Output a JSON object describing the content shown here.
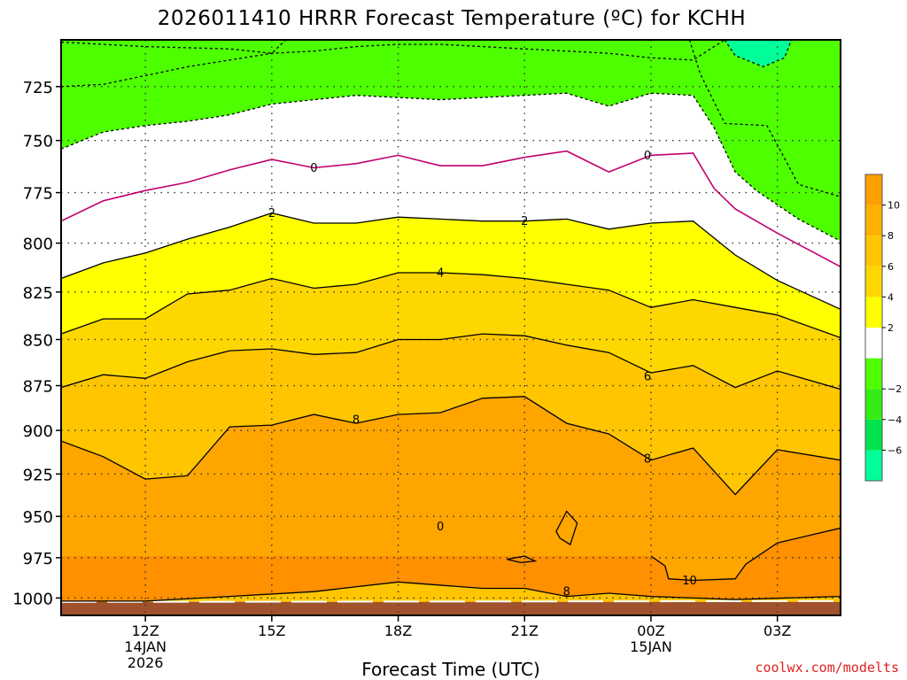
{
  "chart_data": {
    "type": "heatmap",
    "title": "2026011410 HRRR Forecast Temperature (ºC) for KCHH",
    "xlabel": "Forecast Time (UTC)",
    "ylabel": "",
    "y_scale": "log",
    "ylim": [
      1011,
      704
    ],
    "y_ticks": [
      725,
      750,
      775,
      800,
      825,
      850,
      875,
      900,
      925,
      950,
      975,
      1000
    ],
    "xlim": [
      "2026-01-14T10:00Z",
      "2026-01-15T04:30Z"
    ],
    "x_ticks": [
      {
        "time": "2026-01-14T12:00Z",
        "label": "12Z",
        "sub": [
          "14JAN",
          "2026"
        ]
      },
      {
        "time": "2026-01-14T15:00Z",
        "label": "15Z",
        "sub": []
      },
      {
        "time": "2026-01-14T18:00Z",
        "label": "18Z",
        "sub": []
      },
      {
        "time": "2026-01-14T21:00Z",
        "label": "21Z",
        "sub": []
      },
      {
        "time": "2026-01-15T00:00Z",
        "label": "00Z",
        "sub": [
          "15JAN"
        ]
      },
      {
        "time": "2026-01-15T03:00Z",
        "label": "03Z",
        "sub": []
      }
    ],
    "grid": true,
    "colorbar": {
      "levels": [
        -8,
        -6,
        -4,
        -2,
        0,
        2,
        4,
        6,
        8,
        10,
        12
      ],
      "colors": [
        "#00ff99",
        "#00e34c",
        "#33ec15",
        "#4dff00",
        "#ffffff",
        "#ffff00",
        "#ffd700",
        "#ffc500",
        "#ffb000",
        "#ff9f00"
      ],
      "tick_labels": [
        {
          "value": 10,
          "text": "10"
        },
        {
          "value": 8,
          "text": "8"
        },
        {
          "value": 6,
          "text": "6"
        },
        {
          "value": 4,
          "text": "4"
        },
        {
          "value": 2,
          "text": "2"
        },
        {
          "value": -2,
          "text": "−2"
        },
        {
          "value": -4,
          "text": "−4"
        },
        {
          "value": -6,
          "text": "−6"
        }
      ]
    },
    "ground_color": "#a0522d",
    "band_colors": {
      "above_-6": "#00ff99",
      "-6_to_-4": "#00e34c",
      "-4_to_-2": "#4dff00",
      "-2_to_0": "#ffffff",
      "0_to_2": "#ffffff",
      "2_to_4": "#ffff00",
      "4_to_6": "#ffd700",
      "6_to_8": "#ffc500",
      "8_to_10": "#ffa500",
      "above_10": "#ff9000"
    },
    "isotherms": [
      {
        "value": -6,
        "style": "dashed",
        "color": "#000000",
        "points": [
          [
            "2026-01-14T10:00Z",
            705
          ],
          [
            "2026-01-14T11:00Z",
            706
          ],
          [
            "2026-01-14T12:00Z",
            707
          ],
          [
            "2026-01-14T14:00Z",
            708
          ],
          [
            "2026-01-14T15:00Z",
            710
          ],
          [
            "2026-01-14T15:20Z",
            704
          ]
        ]
      },
      {
        "value": -6,
        "style": "dashed",
        "color": "#000000",
        "points": [
          [
            "2026-01-15T01:45Z",
            704
          ],
          [
            "2026-01-15T02:00Z",
            711
          ],
          [
            "2026-01-15T02:40Z",
            716
          ],
          [
            "2026-01-15T03:10Z",
            712
          ],
          [
            "2026-01-15T03:20Z",
            704
          ]
        ]
      },
      {
        "value": -4,
        "style": "dashed",
        "color": "#000000",
        "points": [
          [
            "2026-01-14T10:00Z",
            725
          ],
          [
            "2026-01-14T11:00Z",
            724
          ],
          [
            "2026-01-14T12:00Z",
            720
          ],
          [
            "2026-01-14T13:00Z",
            716
          ],
          [
            "2026-01-14T14:00Z",
            713
          ],
          [
            "2026-01-14T15:00Z",
            710
          ],
          [
            "2026-01-14T16:00Z",
            709
          ],
          [
            "2026-01-14T17:00Z",
            707
          ],
          [
            "2026-01-14T18:00Z",
            706
          ],
          [
            "2026-01-14T19:00Z",
            706
          ],
          [
            "2026-01-14T20:00Z",
            707
          ],
          [
            "2026-01-14T21:00Z",
            708
          ],
          [
            "2026-01-14T22:00Z",
            709
          ],
          [
            "2026-01-14T23:00Z",
            710
          ],
          [
            "2026-01-15T00:00Z",
            712
          ],
          [
            "2026-01-15T01:00Z",
            713
          ],
          [
            "2026-01-15T01:45Z",
            704
          ]
        ]
      },
      {
        "value": -4,
        "style": "dashed",
        "color": "#000000",
        "points": [
          [
            "2026-01-15T00:55Z",
            704
          ],
          [
            "2026-01-15T01:10Z",
            719
          ],
          [
            "2026-01-15T01:45Z",
            742
          ],
          [
            "2026-01-15T02:45Z",
            743
          ],
          [
            "2026-01-15T03:00Z",
            752
          ],
          [
            "2026-01-15T03:30Z",
            771
          ],
          [
            "2026-01-15T04:30Z",
            777
          ]
        ]
      },
      {
        "value": -2,
        "style": "dashed",
        "color": "#000000",
        "points": [
          [
            "2026-01-14T10:00Z",
            754
          ],
          [
            "2026-01-14T11:00Z",
            746
          ],
          [
            "2026-01-14T12:00Z",
            743
          ],
          [
            "2026-01-14T13:00Z",
            741
          ],
          [
            "2026-01-14T14:00Z",
            738
          ],
          [
            "2026-01-14T15:00Z",
            733
          ],
          [
            "2026-01-14T16:00Z",
            731
          ],
          [
            "2026-01-14T17:00Z",
            729
          ],
          [
            "2026-01-14T18:00Z",
            730
          ],
          [
            "2026-01-14T19:00Z",
            731
          ],
          [
            "2026-01-14T20:00Z",
            730
          ],
          [
            "2026-01-14T21:00Z",
            729
          ],
          [
            "2026-01-14T22:00Z",
            728
          ],
          [
            "2026-01-14T23:00Z",
            734
          ],
          [
            "2026-01-15T00:00Z",
            728
          ],
          [
            "2026-01-15T01:00Z",
            729
          ],
          [
            "2026-01-15T01:30Z",
            744
          ],
          [
            "2026-01-15T02:00Z",
            765
          ],
          [
            "2026-01-15T02:30Z",
            774
          ],
          [
            "2026-01-15T03:30Z",
            788
          ],
          [
            "2026-01-15T04:30Z",
            799
          ]
        ]
      },
      {
        "value": 0,
        "style": "solid",
        "color": "#c0006e",
        "points": [
          [
            "2026-01-14T10:00Z",
            789
          ],
          [
            "2026-01-14T11:00Z",
            779
          ],
          [
            "2026-01-14T12:00Z",
            774
          ],
          [
            "2026-01-14T13:00Z",
            770
          ],
          [
            "2026-01-14T14:00Z",
            764
          ],
          [
            "2026-01-14T15:00Z",
            759
          ],
          [
            "2026-01-14T16:00Z",
            763
          ],
          [
            "2026-01-14T17:00Z",
            761
          ],
          [
            "2026-01-14T18:00Z",
            757
          ],
          [
            "2026-01-14T19:00Z",
            762
          ],
          [
            "2026-01-14T20:00Z",
            762
          ],
          [
            "2026-01-14T21:00Z",
            758
          ],
          [
            "2026-01-14T22:00Z",
            755
          ],
          [
            "2026-01-14T23:00Z",
            765
          ],
          [
            "2026-01-15T00:00Z",
            757
          ],
          [
            "2026-01-15T01:00Z",
            756
          ],
          [
            "2026-01-15T01:30Z",
            773
          ],
          [
            "2026-01-15T02:00Z",
            783
          ],
          [
            "2026-01-15T03:00Z",
            795
          ],
          [
            "2026-01-15T04:30Z",
            812
          ]
        ]
      },
      {
        "value": 2,
        "style": "solid",
        "color": "#000000",
        "points": [
          [
            "2026-01-14T10:00Z",
            818
          ],
          [
            "2026-01-14T11:00Z",
            810
          ],
          [
            "2026-01-14T12:00Z",
            805
          ],
          [
            "2026-01-14T13:00Z",
            798
          ],
          [
            "2026-01-14T14:00Z",
            792
          ],
          [
            "2026-01-14T15:00Z",
            785
          ],
          [
            "2026-01-14T16:00Z",
            790
          ],
          [
            "2026-01-14T17:00Z",
            790
          ],
          [
            "2026-01-14T18:00Z",
            787
          ],
          [
            "2026-01-14T19:00Z",
            788
          ],
          [
            "2026-01-14T20:00Z",
            789
          ],
          [
            "2026-01-14T21:00Z",
            789
          ],
          [
            "2026-01-14T22:00Z",
            788
          ],
          [
            "2026-01-14T23:00Z",
            793
          ],
          [
            "2026-01-15T00:00Z",
            790
          ],
          [
            "2026-01-15T01:00Z",
            789
          ],
          [
            "2026-01-15T02:00Z",
            806
          ],
          [
            "2026-01-15T03:00Z",
            819
          ],
          [
            "2026-01-15T04:30Z",
            834
          ]
        ]
      },
      {
        "value": 4,
        "style": "solid",
        "color": "#000000",
        "points": [
          [
            "2026-01-14T10:00Z",
            847
          ],
          [
            "2026-01-14T11:00Z",
            839
          ],
          [
            "2026-01-14T12:00Z",
            839
          ],
          [
            "2026-01-14T13:00Z",
            826
          ],
          [
            "2026-01-14T14:00Z",
            824
          ],
          [
            "2026-01-14T15:00Z",
            818
          ],
          [
            "2026-01-14T16:00Z",
            823
          ],
          [
            "2026-01-14T17:00Z",
            821
          ],
          [
            "2026-01-14T18:00Z",
            815
          ],
          [
            "2026-01-14T19:00Z",
            815
          ],
          [
            "2026-01-14T20:00Z",
            816
          ],
          [
            "2026-01-14T21:00Z",
            818
          ],
          [
            "2026-01-14T22:00Z",
            821
          ],
          [
            "2026-01-14T23:00Z",
            824
          ],
          [
            "2026-01-15T00:00Z",
            833
          ],
          [
            "2026-01-15T01:00Z",
            829
          ],
          [
            "2026-01-15T02:00Z",
            833
          ],
          [
            "2026-01-15T03:00Z",
            837
          ],
          [
            "2026-01-15T04:30Z",
            849
          ]
        ]
      },
      {
        "value": 6,
        "style": "solid",
        "color": "#000000",
        "points": [
          [
            "2026-01-14T10:00Z",
            876
          ],
          [
            "2026-01-14T11:00Z",
            869
          ],
          [
            "2026-01-14T12:00Z",
            871
          ],
          [
            "2026-01-14T13:00Z",
            862
          ],
          [
            "2026-01-14T14:00Z",
            856
          ],
          [
            "2026-01-14T15:00Z",
            855
          ],
          [
            "2026-01-14T16:00Z",
            858
          ],
          [
            "2026-01-14T17:00Z",
            857
          ],
          [
            "2026-01-14T18:00Z",
            850
          ],
          [
            "2026-01-14T19:00Z",
            850
          ],
          [
            "2026-01-14T20:00Z",
            847
          ],
          [
            "2026-01-14T21:00Z",
            848
          ],
          [
            "2026-01-14T22:00Z",
            853
          ],
          [
            "2026-01-14T23:00Z",
            857
          ],
          [
            "2026-01-15T00:00Z",
            868
          ],
          [
            "2026-01-15T01:00Z",
            864
          ],
          [
            "2026-01-15T02:00Z",
            876
          ],
          [
            "2026-01-15T03:00Z",
            867
          ],
          [
            "2026-01-15T04:30Z",
            877
          ]
        ]
      },
      {
        "value": 8,
        "style": "solid",
        "color": "#000000",
        "points": [
          [
            "2026-01-14T10:00Z",
            906
          ],
          [
            "2026-01-14T11:00Z",
            915
          ],
          [
            "2026-01-14T12:00Z",
            928
          ],
          [
            "2026-01-14T13:00Z",
            926
          ],
          [
            "2026-01-14T14:00Z",
            898
          ],
          [
            "2026-01-14T15:00Z",
            897
          ],
          [
            "2026-01-14T16:00Z",
            891
          ],
          [
            "2026-01-14T17:00Z",
            896
          ],
          [
            "2026-01-14T18:00Z",
            891
          ],
          [
            "2026-01-14T19:00Z",
            890
          ],
          [
            "2026-01-14T20:00Z",
            882
          ],
          [
            "2026-01-14T21:00Z",
            881
          ],
          [
            "2026-01-14T22:00Z",
            896
          ],
          [
            "2026-01-14T23:00Z",
            902
          ],
          [
            "2026-01-15T00:00Z",
            917
          ],
          [
            "2026-01-15T01:00Z",
            910
          ],
          [
            "2026-01-15T02:00Z",
            937
          ],
          [
            "2026-01-15T03:00Z",
            911
          ],
          [
            "2026-01-15T04:30Z",
            917
          ]
        ]
      },
      {
        "value": 8,
        "style": "solid",
        "color": "#000000",
        "points": [
          [
            "2026-01-14T10:00Z",
            1002
          ],
          [
            "2026-01-14T12:00Z",
            1002
          ],
          [
            "2026-01-14T14:00Z",
            999
          ],
          [
            "2026-01-14T16:00Z",
            996
          ],
          [
            "2026-01-14T18:00Z",
            990
          ],
          [
            "2026-01-14T20:00Z",
            994
          ],
          [
            "2026-01-14T21:00Z",
            994
          ],
          [
            "2026-01-14T22:00Z",
            999
          ],
          [
            "2026-01-14T23:00Z",
            997
          ],
          [
            "2026-01-15T00:00Z",
            999
          ],
          [
            "2026-01-15T02:00Z",
            1001
          ],
          [
            "2026-01-15T04:30Z",
            999
          ]
        ]
      },
      {
        "value": 8,
        "style": "solid",
        "color": "#000000",
        "closed": true,
        "points": [
          [
            "2026-01-14T22:00Z",
            947
          ],
          [
            "2026-01-14T22:15Z",
            954
          ],
          [
            "2026-01-14T22:05Z",
            967
          ],
          [
            "2026-01-14T21:50Z",
            963
          ],
          [
            "2026-01-14T21:45Z",
            959
          ]
        ]
      },
      {
        "value": 10,
        "style": "solid",
        "color": "#000000",
        "points": [
          [
            "2026-01-15T00:00Z",
            974
          ],
          [
            "2026-01-15T00:20Z",
            980
          ],
          [
            "2026-01-15T00:25Z",
            988
          ],
          [
            "2026-01-15T01:00Z",
            989
          ],
          [
            "2026-01-15T02:00Z",
            988
          ],
          [
            "2026-01-15T02:15Z",
            979
          ],
          [
            "2026-01-15T03:00Z",
            966
          ],
          [
            "2026-01-15T04:30Z",
            957
          ]
        ]
      },
      {
        "value": 10,
        "style": "solid",
        "color": "#000000",
        "closed": true,
        "points": [
          [
            "2026-01-14T20:35Z",
            976
          ],
          [
            "2026-01-14T21:00Z",
            974
          ],
          [
            "2026-01-14T21:15Z",
            977
          ],
          [
            "2026-01-14T20:55Z",
            978
          ]
        ]
      }
    ],
    "contour_labels": [
      {
        "text": "0",
        "time": "2026-01-14T16:00Z",
        "p": 763
      },
      {
        "text": "0",
        "time": "2026-01-14T23:55Z",
        "p": 757
      },
      {
        "text": "2",
        "time": "2026-01-14T15:00Z",
        "p": 785
      },
      {
        "text": "2",
        "time": "2026-01-14T21:00Z",
        "p": 789
      },
      {
        "text": "4",
        "time": "2026-01-14T19:00Z",
        "p": 815
      },
      {
        "text": "6",
        "time": "2026-01-14T23:55Z",
        "p": 870
      },
      {
        "text": "8",
        "time": "2026-01-14T17:00Z",
        "p": 894
      },
      {
        "text": "8",
        "time": "2026-01-14T23:55Z",
        "p": 916
      },
      {
        "text": "8",
        "time": "2026-01-14T22:00Z",
        "p": 996
      },
      {
        "text": "10",
        "time": "2026-01-15T00:55Z",
        "p": 989
      },
      {
        "text": "0",
        "time": "2026-01-14T19:00Z",
        "p": 956,
        "small": true
      }
    ]
  },
  "footer": {
    "credit": "coolwx.com/modelts"
  }
}
